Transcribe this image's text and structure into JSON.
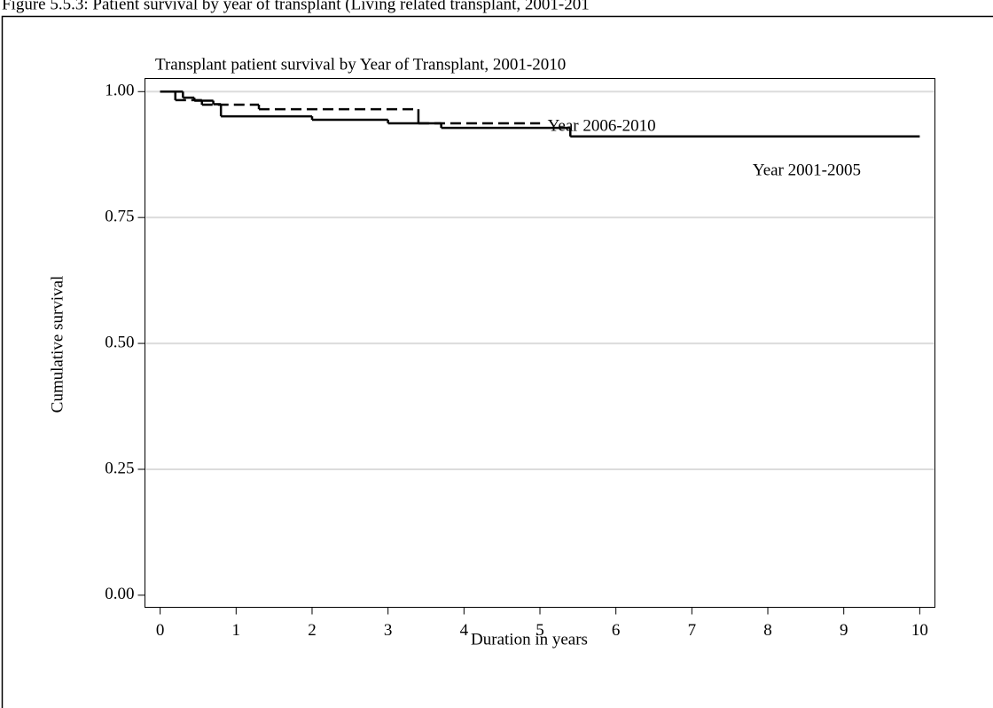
{
  "chart_data": {
    "type": "step",
    "caption": "Figure 5.5.3: Patient survival by year of transplant (Living related transplant, 2001-201",
    "title": "Transplant patient survival by Year of Transplant, 2001-2010",
    "x_label": "Duration in years",
    "y_label": "Cumulative survival",
    "xlim": [
      -0.2,
      10.2
    ],
    "ylim": [
      -0.024,
      1.026
    ],
    "xticks": [
      0,
      1,
      2,
      3,
      4,
      5,
      6,
      7,
      8,
      9,
      10
    ],
    "yticks": [
      {
        "value": 0,
        "label": "0.00"
      },
      {
        "value": 0.25,
        "label": "0.25"
      },
      {
        "value": 0.5,
        "label": "0.50"
      },
      {
        "value": 0.75,
        "label": "0.75"
      },
      {
        "value": 1,
        "label": "1.00"
      }
    ],
    "grid": true,
    "series": [
      {
        "name": "Year 2001-2005",
        "color": "#000000",
        "dash": false,
        "x": [
          0,
          0.3,
          0.45,
          0.7,
          0.8,
          2.0,
          3.0,
          3.7,
          5.4,
          10
        ],
        "values": [
          1.0,
          0.988,
          0.982,
          0.975,
          0.951,
          0.944,
          0.937,
          0.928,
          0.911,
          0.911
        ]
      },
      {
        "name": "Year 2006-2010",
        "color": "#000000",
        "dash": true,
        "x": [
          0,
          0.2,
          0.55,
          1.3,
          3.4,
          5.0
        ],
        "values": [
          1.0,
          0.983,
          0.974,
          0.965,
          0.937,
          0.937
        ]
      }
    ]
  }
}
